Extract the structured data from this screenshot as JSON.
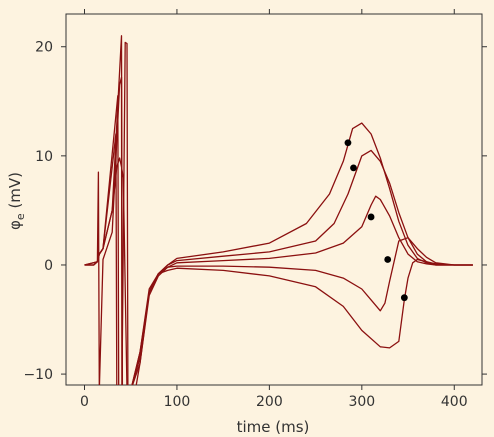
{
  "chart_data": {
    "type": "line",
    "title": "",
    "xlabel": "time (ms)",
    "ylabel_symbol": "φ",
    "ylabel_subscript": "e",
    "ylabel_unit": " (mV)",
    "xlim": [
      -20,
      430
    ],
    "ylim": [
      -11,
      23
    ],
    "xticks": [
      0,
      100,
      200,
      300,
      400
    ],
    "yticks": [
      -10,
      0,
      10,
      20
    ],
    "grid": false,
    "legend": "none",
    "colors": {
      "background": "#fdf3e0",
      "line": "#8b1010",
      "marker": "#000000",
      "axis": "#333333"
    },
    "series": [
      {
        "x": [
          0,
          10,
          14,
          15,
          16,
          20,
          30,
          38,
          40,
          40.5,
          44,
          46,
          47,
          48,
          52,
          55,
          60,
          70,
          80,
          90,
          100,
          150,
          200,
          240,
          265,
          280,
          290,
          300,
          310,
          320,
          330,
          340,
          350,
          360,
          370,
          380,
          400,
          420
        ],
        "y": [
          0,
          0,
          0.3,
          8.5,
          -11.5,
          0.5,
          3,
          16.5,
          17.2,
          -11.5,
          20.4,
          20.3,
          -11.5,
          -11.5,
          -11.5,
          -11.5,
          -9,
          -2.5,
          -0.8,
          0,
          0.6,
          1.2,
          2,
          3.8,
          6.5,
          9.5,
          12.5,
          13,
          12,
          9.8,
          7,
          4,
          1.8,
          0.6,
          0.2,
          0,
          0,
          0
        ]
      },
      {
        "x": [
          0,
          10,
          14,
          16,
          20,
          30,
          40,
          41,
          42,
          46,
          50,
          60,
          70,
          80,
          90,
          100,
          150,
          200,
          250,
          270,
          285,
          300,
          310,
          320,
          330,
          340,
          350,
          360,
          370,
          380,
          400,
          420
        ],
        "y": [
          0,
          0,
          0.3,
          1,
          1.5,
          5,
          21,
          -11.5,
          -11.5,
          -11.5,
          -11.5,
          -8,
          -2.5,
          -0.8,
          0,
          0.4,
          0.8,
          1.2,
          2.2,
          3.8,
          6.5,
          10,
          10.5,
          9.5,
          7.5,
          4.8,
          2.5,
          1,
          0.3,
          0,
          0,
          0
        ]
      },
      {
        "x": [
          0,
          10,
          14,
          16,
          20,
          30,
          35,
          38,
          40,
          42,
          46,
          50,
          60,
          70,
          80,
          90,
          100,
          150,
          200,
          250,
          280,
          300,
          310,
          315,
          320,
          330,
          340,
          350,
          360,
          370,
          380,
          400,
          420
        ],
        "y": [
          0,
          0,
          0.3,
          1,
          1.5,
          5,
          9,
          9.8,
          9,
          8,
          -11.5,
          -11.5,
          -9,
          -2.8,
          -1,
          -0.2,
          0.2,
          0.4,
          0.6,
          1.1,
          2,
          3.5,
          5.5,
          6.3,
          6,
          4.5,
          2.5,
          1,
          0.3,
          0.1,
          0,
          0,
          0
        ]
      },
      {
        "x": [
          0,
          14,
          16,
          20,
          34,
          35,
          40,
          50,
          60,
          70,
          80,
          90,
          100,
          150,
          200,
          250,
          280,
          300,
          310,
          320,
          325,
          330,
          340,
          350,
          360,
          370,
          380,
          400,
          420
        ],
        "y": [
          0,
          0.3,
          1,
          1.5,
          12,
          -11.5,
          -11.5,
          -11.5,
          -8.5,
          -2.5,
          -0.8,
          -0.2,
          -0.1,
          -0.1,
          -0.2,
          -0.5,
          -1.2,
          -2.2,
          -3.2,
          -4.2,
          -3.5,
          -1.5,
          2.2,
          2.5,
          1.5,
          0.7,
          0.2,
          0,
          0
        ]
      },
      {
        "x": [
          0,
          14,
          16,
          20,
          36,
          37,
          40,
          50,
          60,
          70,
          80,
          90,
          100,
          150,
          200,
          250,
          280,
          300,
          320,
          330,
          340,
          346,
          350,
          355,
          360,
          370,
          380,
          400,
          420
        ],
        "y": [
          0,
          0.3,
          1,
          1.5,
          15.5,
          -11.5,
          -11.5,
          -11.5,
          -8,
          -2.2,
          -0.8,
          -0.5,
          -0.3,
          -0.5,
          -1,
          -2,
          -3.8,
          -6,
          -7.5,
          -7.6,
          -7,
          -3.2,
          -1.2,
          0.2,
          0.5,
          0.3,
          0.1,
          0,
          0
        ]
      }
    ],
    "markers": [
      {
        "x": 285,
        "y": 11.2
      },
      {
        "x": 291,
        "y": 8.9
      },
      {
        "x": 310,
        "y": 4.4
      },
      {
        "x": 328,
        "y": 0.5
      },
      {
        "x": 346,
        "y": -3
      }
    ]
  }
}
